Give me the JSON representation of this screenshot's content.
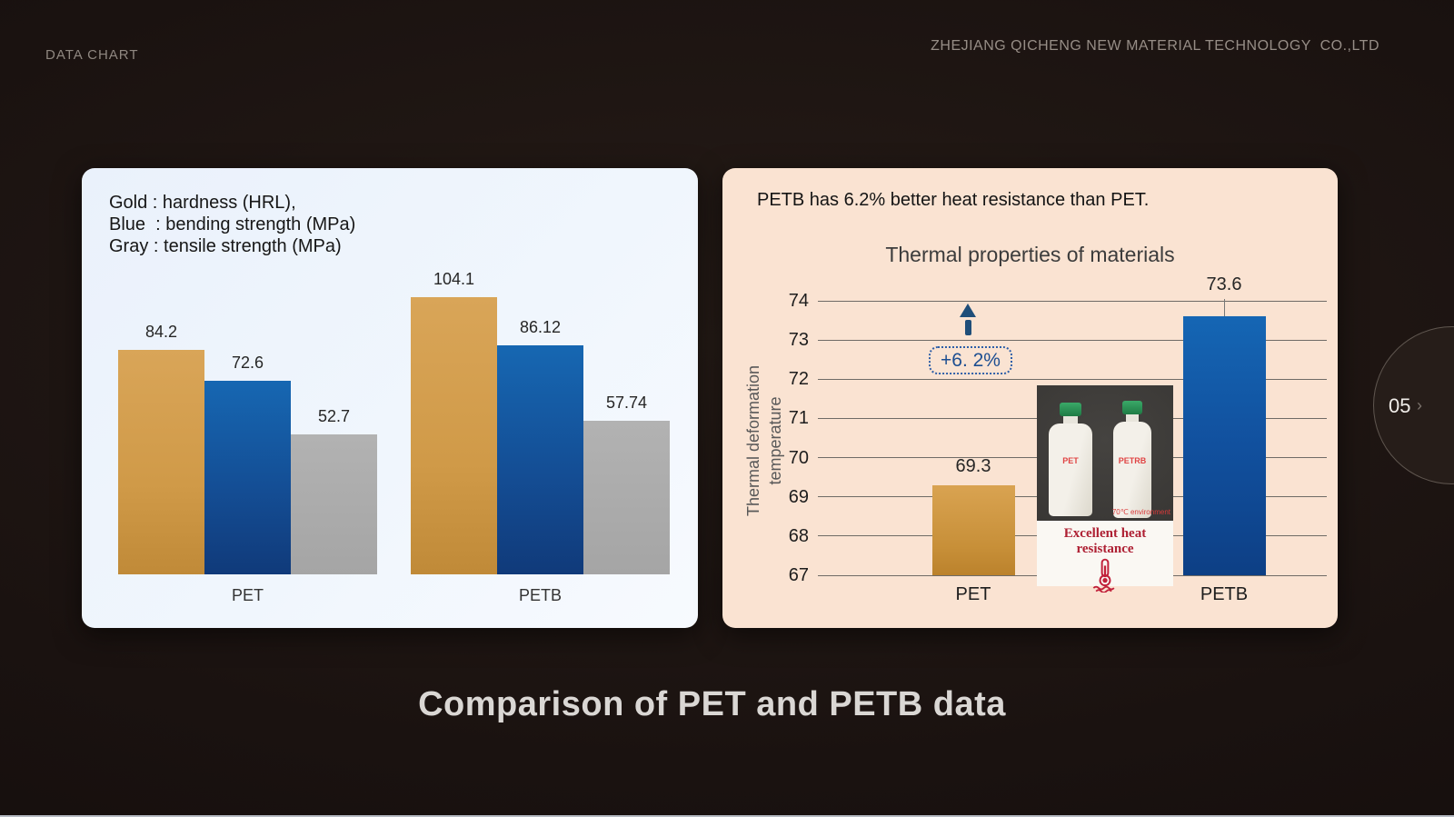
{
  "header": {
    "left_label": "DATA CHART",
    "company": "ZHEJIANG QICHENG NEW MATERIAL TECHNOLOGY  CO.,LTD"
  },
  "slide_title": "Comparison of PET and PETB data",
  "page_indicator": {
    "number": "05",
    "chevron": "›"
  },
  "left_panel": {
    "legend_lines": [
      "Gold : hardness (HRL),",
      "Blue  : bending strength (MPa)",
      "Gray : tensile strength (MPa)"
    ]
  },
  "right_panel": {
    "headline": "PETB has 6.2% better heat resistance than PET.",
    "chart_title": "Thermal properties of materials",
    "y_axis_label_lines": [
      "Thermal deformation",
      "temperature"
    ],
    "annotation_label": "+6. 2%",
    "inset": {
      "bottle_left_label": "PET",
      "bottle_right_label": "PETRB",
      "photo_note": "70℃ environment",
      "caption": "Excellent heat resistance"
    }
  },
  "colors": {
    "gold": "#d2973f",
    "blue": "#12489b",
    "gray": "#a9a9a9",
    "accent_blue": "#1f4e79",
    "panel_left_bg": "#eef4fd",
    "panel_right_bg": "#fae3d2",
    "caption_red": "#ae2033"
  },
  "chart_data": [
    {
      "type": "bar",
      "title": "",
      "categories": [
        "PET",
        "PETB"
      ],
      "series": [
        {
          "name": "hardness (HRL)",
          "color_name": "gold",
          "values": [
            84.2,
            104.1
          ]
        },
        {
          "name": "bending strength (MPa)",
          "color_name": "blue",
          "values": [
            72.6,
            86.12
          ]
        },
        {
          "name": "tensile strength (MPa)",
          "color_name": "gray",
          "values": [
            52.7,
            57.74
          ]
        }
      ],
      "ylim": [
        0,
        110
      ],
      "grid": false,
      "legend_position": "top-left-text"
    },
    {
      "type": "bar",
      "title": "Thermal properties of materials",
      "categories": [
        "PET",
        "PETB"
      ],
      "series": [
        {
          "name": "Thermal deformation temperature",
          "values": [
            69.3,
            73.6
          ]
        }
      ],
      "bar_colors": [
        "gold",
        "blue"
      ],
      "ylabel": "Thermal deformation temperature",
      "ylim": [
        67,
        74
      ],
      "yticks": [
        67,
        68,
        69,
        70,
        71,
        72,
        73,
        74
      ],
      "grid": true,
      "annotation": "+6. 2%"
    }
  ]
}
